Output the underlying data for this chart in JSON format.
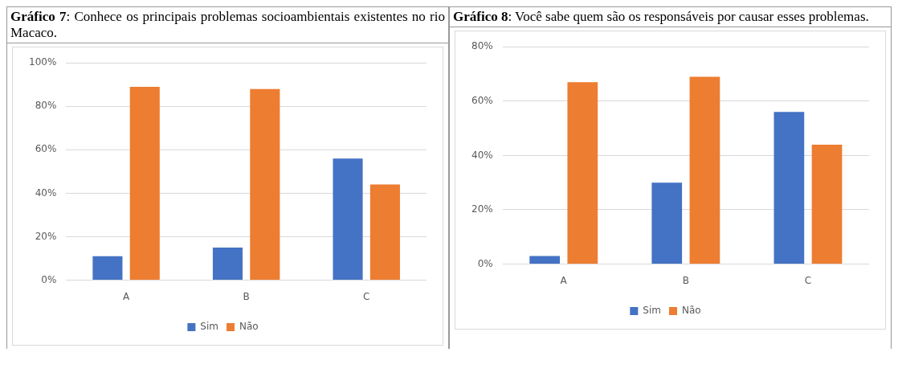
{
  "chart_data": [
    {
      "type": "bar",
      "title": "Gráfico 7: Conhece os principais problemas socioambientais existentes no rio Macaco.",
      "categories": [
        "A",
        "B",
        "C"
      ],
      "series": [
        {
          "name": "Sim",
          "color": "#4472c4",
          "values": [
            11,
            15,
            56
          ]
        },
        {
          "name": "Não",
          "color": "#ed7d31",
          "values": [
            89,
            88,
            44
          ]
        }
      ],
      "ylim": [
        0,
        100
      ],
      "yticks": [
        {
          "value": 0,
          "label": "0%"
        },
        {
          "value": 20,
          "label": "20%"
        },
        {
          "value": 40,
          "label": "40%"
        },
        {
          "value": 60,
          "label": "60%"
        },
        {
          "value": 80,
          "label": "80%"
        },
        {
          "value": 100,
          "label": "100%"
        }
      ],
      "grid": "y",
      "legend": "bottom"
    },
    {
      "type": "bar",
      "title": "Gráfico 8: Você sabe quem são os responsáveis por causar esses problemas.",
      "categories": [
        "A",
        "B",
        "C"
      ],
      "series": [
        {
          "name": "Sim",
          "color": "#4472c4",
          "values": [
            3,
            30,
            56
          ]
        },
        {
          "name": "Não",
          "color": "#ed7d31",
          "values": [
            67,
            69,
            44
          ]
        }
      ],
      "ylim": [
        0,
        80
      ],
      "yticks": [
        {
          "value": 0,
          "label": "0%"
        },
        {
          "value": 20,
          "label": "20%"
        },
        {
          "value": 40,
          "label": "40%"
        },
        {
          "value": 60,
          "label": "60%"
        },
        {
          "value": 80,
          "label": "80%"
        }
      ],
      "grid": "y",
      "legend": "bottom"
    }
  ]
}
